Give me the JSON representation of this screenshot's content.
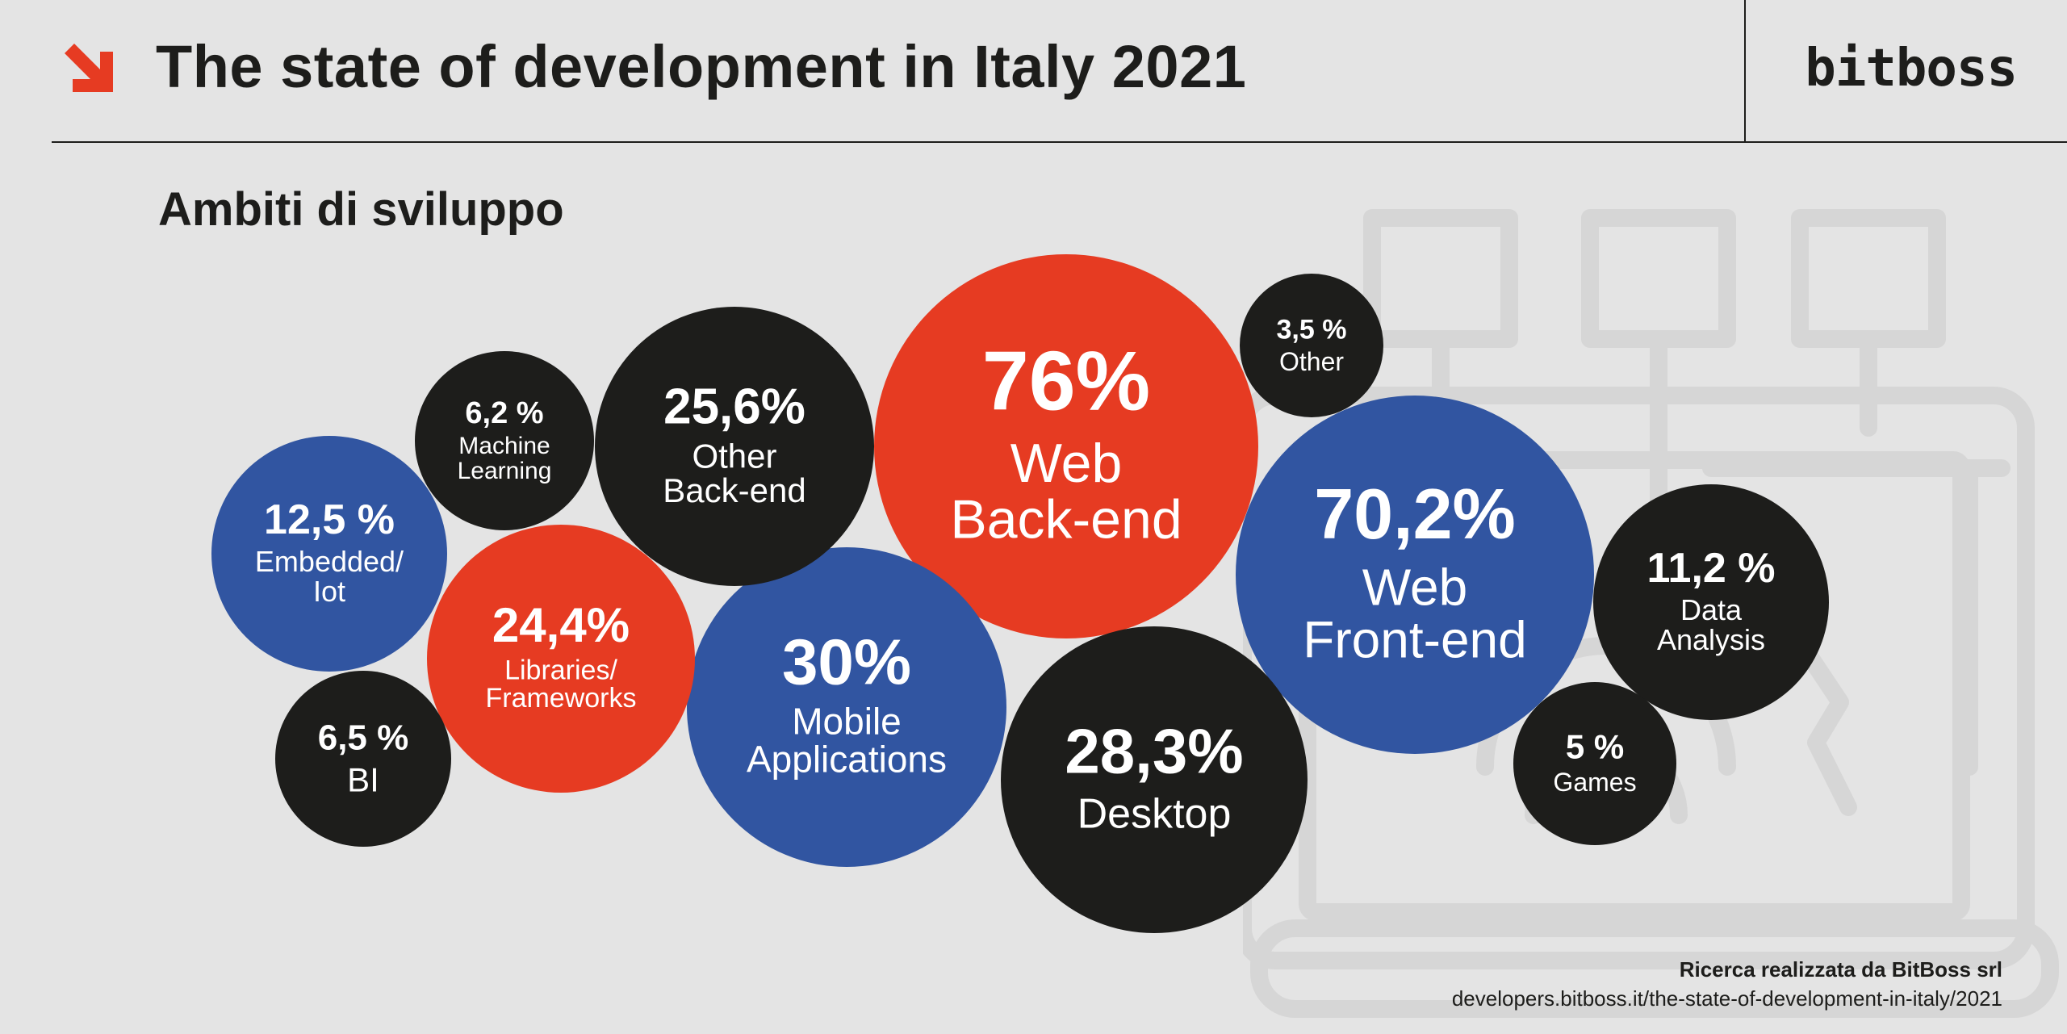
{
  "header": {
    "title": "The state of development in Italy 2021",
    "brand": "bitboss",
    "arrow_icon": "arrow-down-right-icon",
    "accent_color": "#e63b22"
  },
  "subtitle": "Ambiti di sviluppo",
  "colors": {
    "blue": "#3155a1",
    "red": "#e63b22",
    "black": "#1d1d1b",
    "background": "#e4e4e4",
    "illustration": "#d6d6d6"
  },
  "chart_data": {
    "type": "bubble",
    "title": "Ambiti di sviluppo",
    "unit": "%",
    "items": [
      {
        "label_lines": [
          "Web",
          "Back-end"
        ],
        "value": 76,
        "value_label": "76%",
        "color": "red"
      },
      {
        "label_lines": [
          "Web",
          "Front-end"
        ],
        "value": 70.2,
        "value_label": "70,2%",
        "color": "blue"
      },
      {
        "label_lines": [
          "Mobile",
          "Applications"
        ],
        "value": 30,
        "value_label": "30%",
        "color": "blue"
      },
      {
        "label_lines": [
          "Desktop"
        ],
        "value": 28.3,
        "value_label": "28,3%",
        "color": "black"
      },
      {
        "label_lines": [
          "Other",
          "Back-end"
        ],
        "value": 25.6,
        "value_label": "25,6%",
        "color": "black"
      },
      {
        "label_lines": [
          "Libraries/",
          "Frameworks"
        ],
        "value": 24.4,
        "value_label": "24,4%",
        "color": "red"
      },
      {
        "label_lines": [
          "Embedded/",
          "Iot"
        ],
        "value": 12.5,
        "value_label": "12,5 %",
        "color": "blue"
      },
      {
        "label_lines": [
          "Data",
          "Analysis"
        ],
        "value": 11.2,
        "value_label": "11,2 %",
        "color": "black"
      },
      {
        "label_lines": [
          "BI"
        ],
        "value": 6.5,
        "value_label": "6,5 %",
        "color": "black"
      },
      {
        "label_lines": [
          "Machine",
          "Learning"
        ],
        "value": 6.2,
        "value_label": "6,2 %",
        "color": "black"
      },
      {
        "label_lines": [
          "Games"
        ],
        "value": 5,
        "value_label": "5 %",
        "color": "black"
      },
      {
        "label_lines": [
          "Other"
        ],
        "value": 3.5,
        "value_label": "3,5 %",
        "color": "black"
      }
    ]
  },
  "footer": {
    "credit": "Ricerca realizzata da BitBoss srl",
    "url": "developers.bitboss.it/the-state-of-development-in-italy/2021"
  }
}
